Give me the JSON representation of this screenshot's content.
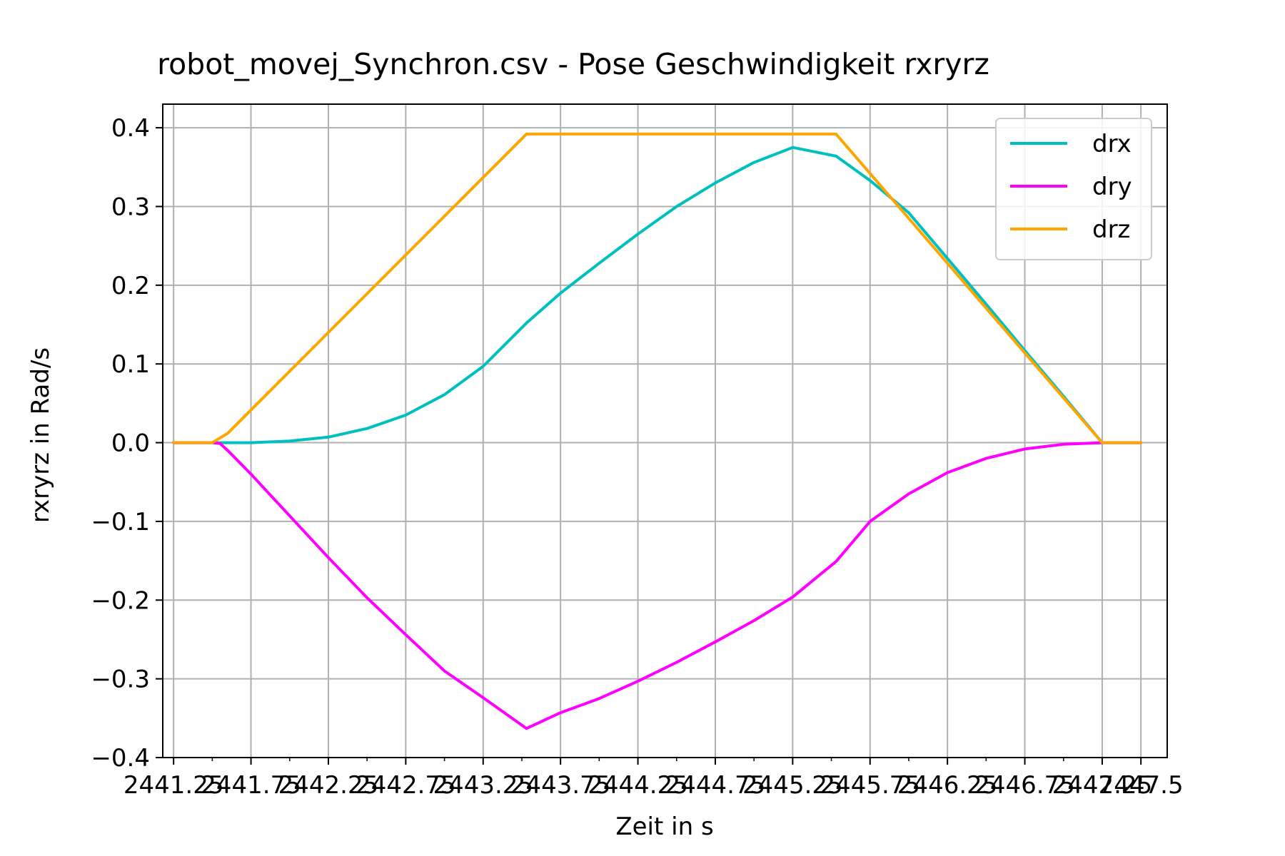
{
  "chart_data": {
    "type": "line",
    "title": "robot_movej_Synchron.csv - Pose Geschwindigkeit rxryrz",
    "xlabel": "Zeit in s",
    "ylabel": "rxryrz in Rad/s",
    "xlim": [
      2441.18,
      2447.67
    ],
    "ylim": [
      -0.4,
      0.43
    ],
    "grid": true,
    "legend_position": "upper right",
    "x_ticks": [
      {
        "value": 2441.25,
        "label": "2441.25"
      },
      {
        "value": 2441.75,
        "label": "2441.75"
      },
      {
        "value": 2442.25,
        "label": "2442.25"
      },
      {
        "value": 2442.75,
        "label": "2442.75"
      },
      {
        "value": 2443.25,
        "label": "2443.25"
      },
      {
        "value": 2443.75,
        "label": "2443.75"
      },
      {
        "value": 2444.25,
        "label": "2444.25"
      },
      {
        "value": 2444.75,
        "label": "2444.75"
      },
      {
        "value": 2445.25,
        "label": "2445.25"
      },
      {
        "value": 2445.75,
        "label": "2445.75"
      },
      {
        "value": 2446.25,
        "label": "2446.25"
      },
      {
        "value": 2446.75,
        "label": "2446.75"
      },
      {
        "value": 2447.25,
        "label": "2447.25"
      },
      {
        "value": 2447.5,
        "label": "2447.5"
      }
    ],
    "x_minor_step": 0.25,
    "y_ticks": [
      {
        "value": 0.4,
        "label": "0.4"
      },
      {
        "value": 0.3,
        "label": "0.3"
      },
      {
        "value": 0.2,
        "label": "0.2"
      },
      {
        "value": 0.1,
        "label": "0.1"
      },
      {
        "value": 0.0,
        "label": "0.0"
      },
      {
        "value": -0.1,
        "label": "−0.1"
      },
      {
        "value": -0.2,
        "label": "−0.2"
      },
      {
        "value": -0.3,
        "label": "−0.3"
      },
      {
        "value": -0.4,
        "label": "−0.4"
      }
    ],
    "series": [
      {
        "name": "drx",
        "color": "#00bfbf",
        "x": [
          2441.25,
          2441.5,
          2441.6,
          2441.75,
          2442.0,
          2442.25,
          2442.5,
          2442.75,
          2443.0,
          2443.25,
          2443.53,
          2443.75,
          2444.0,
          2444.25,
          2444.5,
          2444.75,
          2445.0,
          2445.25,
          2445.53,
          2445.75,
          2446.0,
          2446.25,
          2446.5,
          2446.75,
          2447.0,
          2447.25,
          2447.5
        ],
        "y": [
          0.0,
          0.0,
          0.0,
          0.0,
          0.002,
          0.007,
          0.018,
          0.035,
          0.061,
          0.097,
          0.152,
          0.19,
          0.228,
          0.265,
          0.3,
          0.33,
          0.356,
          0.375,
          0.364,
          0.333,
          0.292,
          0.234,
          0.176,
          0.117,
          0.059,
          0.0,
          0.0
        ]
      },
      {
        "name": "dry",
        "color": "#ff00ff",
        "x": [
          2441.25,
          2441.5,
          2441.55,
          2441.6,
          2441.75,
          2442.0,
          2442.25,
          2442.5,
          2442.75,
          2443.0,
          2443.25,
          2443.53,
          2443.75,
          2444.0,
          2444.25,
          2444.5,
          2444.75,
          2445.0,
          2445.25,
          2445.53,
          2445.75,
          2446.0,
          2446.25,
          2446.5,
          2446.75,
          2447.0,
          2447.25,
          2447.5
        ],
        "y": [
          0.0,
          0.0,
          -0.001,
          -0.01,
          -0.04,
          -0.093,
          -0.146,
          -0.197,
          -0.244,
          -0.29,
          -0.324,
          -0.363,
          -0.343,
          -0.325,
          -0.303,
          -0.279,
          -0.253,
          -0.226,
          -0.196,
          -0.151,
          -0.1,
          -0.065,
          -0.038,
          -0.02,
          -0.008,
          -0.002,
          0.0,
          0.0
        ]
      },
      {
        "name": "drz",
        "color": "#ffa500",
        "x": [
          2441.25,
          2441.5,
          2441.6,
          2443.53,
          2445.53,
          2447.25,
          2447.5
        ],
        "y": [
          0.0,
          0.0,
          0.012,
          0.392,
          0.392,
          0.0,
          0.0
        ]
      }
    ]
  }
}
